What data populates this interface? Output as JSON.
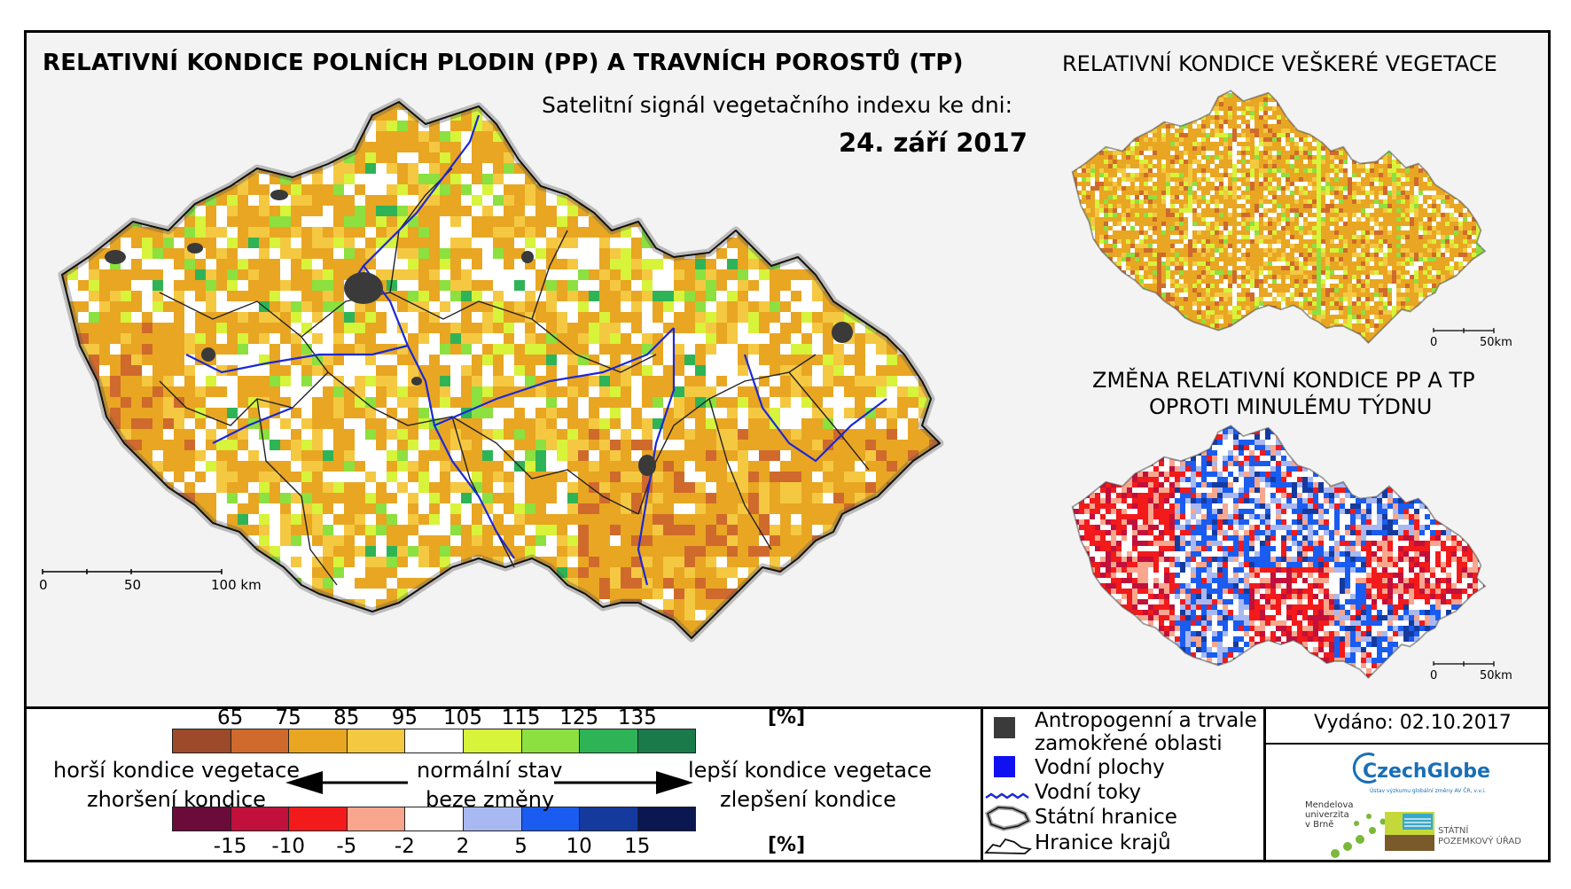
{
  "header": {
    "title": "RELATIVNÍ KONDICE POLNÍCH PLODIN (PP) A TRAVNÍCH POROSTŮ (TP)",
    "subtitle": "Satelitní signál vegetačního indexu ke dni:",
    "date": "24. září 2017"
  },
  "side_maps": {
    "top_title": "RELATIVNÍ KONDICE VEŠKERÉ VEGETACE",
    "bottom_title_line1": "ZMĚNA RELATIVNÍ KONDICE PP A TP",
    "bottom_title_line2": "OPROTI MINULÉMU TÝDNU",
    "scale_0": "0",
    "scale_50": "50km"
  },
  "main_map": {
    "scale_0": "0",
    "scale_50": "50",
    "scale_100": "100 km"
  },
  "legend": {
    "condition_ticks": [
      "65",
      "75",
      "85",
      "95",
      "105",
      "115",
      "125",
      "135"
    ],
    "condition_unit": "[%]",
    "condition_colors": [
      "#9c4a2a",
      "#cf6a2c",
      "#e8a622",
      "#f5c842",
      "#ffffff",
      "#d7f33a",
      "#8ce03f",
      "#2fb357",
      "#1a7a4a"
    ],
    "change_ticks": [
      "-15",
      "-10",
      "-5",
      "-2",
      "2",
      "5",
      "10",
      "15"
    ],
    "change_unit": "[%]",
    "change_colors": [
      "#6b0b3a",
      "#c0103b",
      "#f21a1a",
      "#f8a68e",
      "#ffffff",
      "#a8b8f0",
      "#1a5cf0",
      "#153a9e",
      "#0b1750"
    ],
    "worse_line1": "horší kondice vegetace",
    "worse_line2": "zhoršení kondice",
    "normal_line1": "normální stav",
    "normal_line2": "beze změny",
    "better_line1": "lepší kondice vegetace",
    "better_line2": "zlepšení kondice"
  },
  "key": {
    "anthropogenic_line1": "Antropogenní a trvale",
    "anthropogenic_line2": "zamokřené oblasti",
    "water_bodies": "Vodní plochy",
    "water_courses": "Vodní toky",
    "state_border": "Státní hranice",
    "regional_border": "Hranice krajů"
  },
  "footer": {
    "issued": "Vydáno: 02.10.2017",
    "logo_czechglobe": "CzechGlobe",
    "logo_czechglobe_sub": "Ústav výzkumu globální změny AV ČR, v.v.i.",
    "logo_mendel_line1": "Mendelova",
    "logo_mendel_line2": "univerzita",
    "logo_mendel_line3": "v Brně",
    "logo_spu_line1": "STÁTNÍ",
    "logo_spu_line2": "POZEMKOVÝ ÚŘAD"
  }
}
